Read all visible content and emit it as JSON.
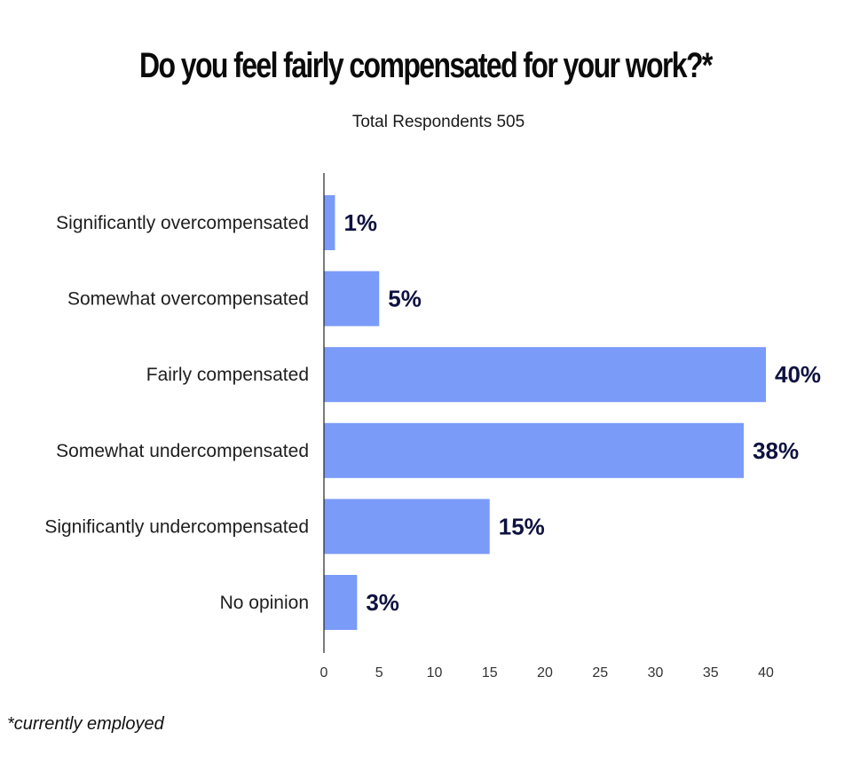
{
  "chart_data": {
    "type": "bar",
    "orientation": "horizontal",
    "title": "Do you feel fairly compensated for your work?*",
    "subtitle": "Total Respondents 505",
    "categories": [
      "Significantly overcompensated",
      "Somewhat overcompensated",
      "Fairly compensated",
      "Somewhat undercompensated",
      "Significantly undercompensated",
      "No opinion"
    ],
    "values": [
      1,
      5,
      40,
      38,
      15,
      3
    ],
    "value_labels": [
      "1%",
      "5%",
      "40%",
      "38%",
      "15%",
      "3%"
    ],
    "xticks": [
      "0",
      "5",
      "10",
      "15",
      "20",
      "25",
      "30",
      "35",
      "40"
    ],
    "xlim": [
      0,
      40
    ],
    "grid": false,
    "xlabel": "",
    "ylabel": "",
    "bar_color": "#7b9bf8",
    "value_label_color": "#0f1240"
  },
  "footnote": "*currently employed"
}
